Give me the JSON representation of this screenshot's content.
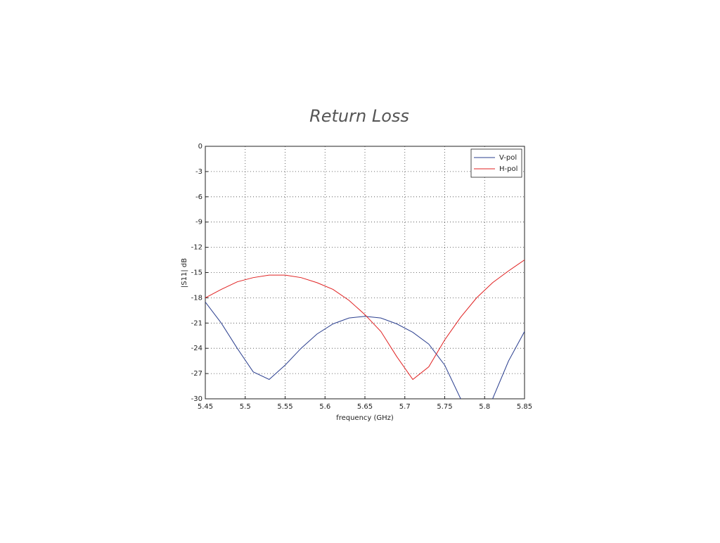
{
  "chart_data": {
    "type": "line",
    "title": "Return Loss",
    "x_label": "frequency (GHz)",
    "y_label": "|S11| dB",
    "x": [
      5.45,
      5.47,
      5.49,
      5.51,
      5.53,
      5.55,
      5.57,
      5.59,
      5.61,
      5.63,
      5.65,
      5.67,
      5.69,
      5.71,
      5.73,
      5.75,
      5.77,
      5.79,
      5.81,
      5.83,
      5.85
    ],
    "series": [
      {
        "name": "V-pol",
        "color": "#2b3f8f",
        "values": [
          -18.5,
          -21,
          -24,
          -26.8,
          -27.7,
          -26,
          -24,
          -22.3,
          -21.1,
          -20.4,
          -20.2,
          -20.4,
          -21.1,
          -22.1,
          -23.5,
          -26,
          -30,
          null,
          -30,
          -25.5,
          -22
        ]
      },
      {
        "name": "H-pol",
        "color": "#e02020",
        "values": [
          -18,
          -17,
          -16.1,
          -15.6,
          -15.3,
          -15.3,
          -15.6,
          -16.2,
          -17,
          -18.3,
          -20,
          -22,
          -25,
          -27.7,
          -26.2,
          -23,
          -20.3,
          -18,
          -16.2,
          -14.8,
          -13.5
        ]
      }
    ],
    "xlim": [
      5.45,
      5.85
    ],
    "xticks": [
      5.45,
      5.5,
      5.55,
      5.6,
      5.65,
      5.7,
      5.75,
      5.8,
      5.85
    ],
    "ylim": [
      -30,
      0
    ],
    "yticks": [
      0,
      -3,
      -6,
      -9,
      -12,
      -15,
      -18,
      -21,
      -24,
      -27,
      -30
    ],
    "grid": true,
    "legend": "northeast"
  }
}
